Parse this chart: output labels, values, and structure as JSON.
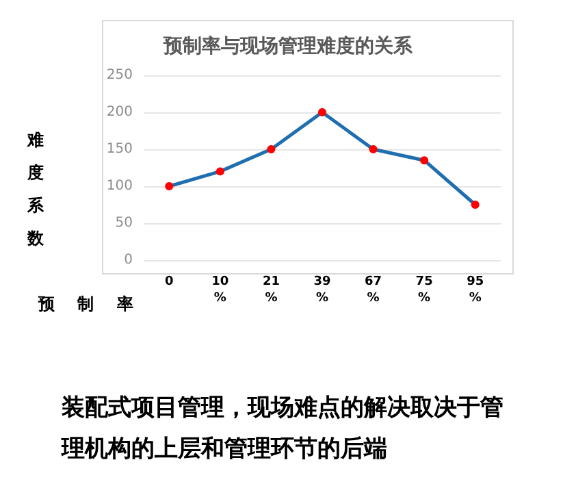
{
  "chart_data": {
    "type": "line",
    "title": "预制率与现场管理难度的关系",
    "xlabel": "预制率",
    "ylabel": "难度系数",
    "categories": [
      "0",
      "10%",
      "21%",
      "39%",
      "67%",
      "75%",
      "95%"
    ],
    "series": [
      {
        "color": "#1f6fb0",
        "values": [
          100,
          120,
          150,
          200,
          150,
          135,
          75
        ]
      }
    ],
    "ylim": [
      0,
      250
    ],
    "yticks": [
      0,
      50,
      100,
      150,
      200,
      250
    ],
    "grid": "y",
    "marker": "circle",
    "line_style": "solid",
    "annotations": [
      "装配式项目管理，现场难点的解决取决于管理机构的上层和管理环节的后端"
    ]
  }
}
